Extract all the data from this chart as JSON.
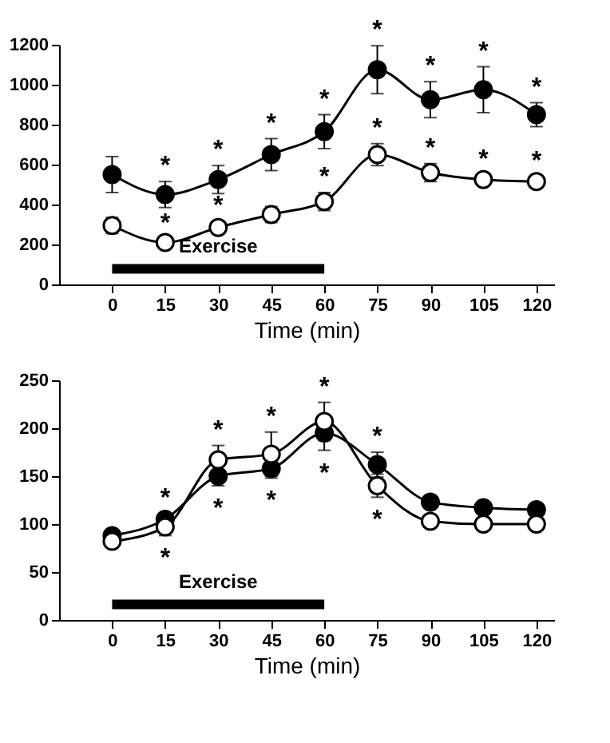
{
  "chart_data": [
    {
      "type": "line",
      "xlabel": "Time (min)",
      "x": [
        0,
        15,
        30,
        45,
        60,
        75,
        90,
        105,
        120
      ],
      "xlim": [
        -15,
        125
      ],
      "xticks": [
        0,
        15,
        30,
        45,
        60,
        75,
        90,
        105,
        120
      ],
      "ylim": [
        0,
        1200
      ],
      "yticks": [
        0,
        200,
        400,
        600,
        800,
        1000,
        1200
      ],
      "grid": false,
      "marker": "circle",
      "line_style": "solid",
      "series": [
        {
          "color": "#000000",
          "values": [
            550,
            450,
            525,
            650,
            765,
            1075,
            925,
            975,
            850
          ],
          "errors": [
            90,
            65,
            70,
            80,
            85,
            120,
            90,
            115,
            60
          ]
        },
        {
          "color": "#ffffff",
          "values": [
            295,
            210,
            285,
            350,
            415,
            650,
            560,
            525,
            515
          ],
          "errors": [
            40,
            20,
            30,
            40,
            45,
            55,
            45,
            25,
            25
          ]
        }
      ],
      "bands": [
        {
          "axis": "x",
          "from": 0,
          "to": 60,
          "label": "Exercise",
          "color": "#000000"
        }
      ],
      "annotations": [
        {
          "text": "*",
          "x": 15,
          "y": 450
        },
        {
          "text": "*",
          "x": 30,
          "y": 525
        },
        {
          "text": "*",
          "x": 45,
          "y": 650
        },
        {
          "text": "*",
          "x": 60,
          "y": 765
        },
        {
          "text": "*",
          "x": 75,
          "y": 1075
        },
        {
          "text": "*",
          "x": 90,
          "y": 925
        },
        {
          "text": "*",
          "x": 105,
          "y": 975
        },
        {
          "text": "*",
          "x": 120,
          "y": 850
        },
        {
          "text": "*",
          "x": 15,
          "y": 210
        },
        {
          "text": "*",
          "x": 30,
          "y": 285
        },
        {
          "text": "*",
          "x": 60,
          "y": 415
        },
        {
          "text": "*",
          "x": 75,
          "y": 650
        },
        {
          "text": "*",
          "x": 90,
          "y": 560
        },
        {
          "text": "*",
          "x": 105,
          "y": 525
        },
        {
          "text": "*",
          "x": 120,
          "y": 515
        }
      ]
    },
    {
      "type": "line",
      "xlabel": "Time (min)",
      "x": [
        0,
        15,
        30,
        45,
        60,
        75,
        90,
        105,
        120
      ],
      "xlim": [
        -15,
        125
      ],
      "xticks": [
        0,
        15,
        30,
        45,
        60,
        75,
        90,
        105,
        120
      ],
      "ylim": [
        0,
        250
      ],
      "yticks": [
        0,
        50,
        100,
        150,
        200,
        250
      ],
      "grid": false,
      "marker": "circle",
      "line_style": "solid",
      "series": [
        {
          "color": "#000000",
          "values": [
            88,
            105,
            150,
            158,
            195,
            162,
            123,
            117,
            115
          ],
          "errors": [
            4,
            6,
            10,
            10,
            18,
            13,
            5,
            5,
            5
          ]
        },
        {
          "color": "#ffffff",
          "values": [
            82,
            97,
            167,
            173,
            207,
            140,
            103,
            100,
            100
          ],
          "errors": [
            5,
            9,
            15,
            23,
            20,
            12,
            5,
            4,
            4
          ]
        }
      ],
      "bands": [
        {
          "axis": "x",
          "from": 0,
          "to": 60,
          "label": "Exercise",
          "color": "#000000"
        }
      ],
      "annotations": [
        {
          "text": "*",
          "x": 15,
          "y": 105
        },
        {
          "text": "*",
          "x": 30,
          "y": 150
        },
        {
          "text": "*",
          "x": 45,
          "y": 158
        },
        {
          "text": "*",
          "x": 60,
          "y": 195
        },
        {
          "text": "*",
          "x": 75,
          "y": 162
        },
        {
          "text": "*",
          "x": 15,
          "y": 97
        },
        {
          "text": "*",
          "x": 30,
          "y": 167
        },
        {
          "text": "*",
          "x": 45,
          "y": 173
        },
        {
          "text": "*",
          "x": 60,
          "y": 207
        },
        {
          "text": "*",
          "x": 75,
          "y": 140
        }
      ]
    }
  ]
}
